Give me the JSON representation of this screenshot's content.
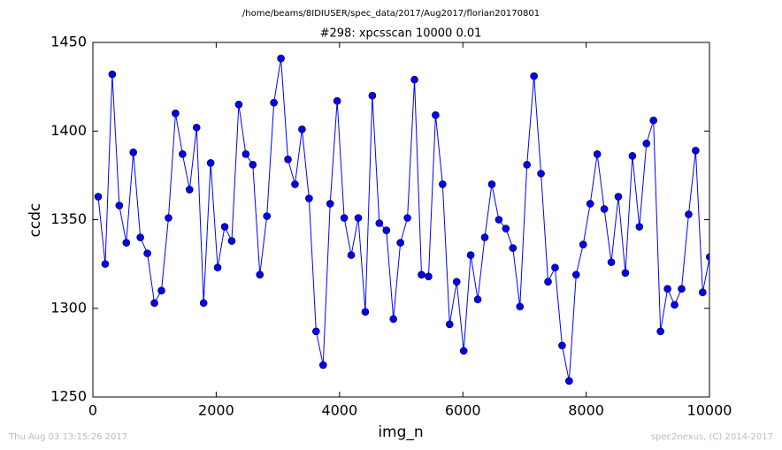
{
  "chart_data": {
    "type": "line",
    "suptitle": "/home/beams/8IDIUSER/spec_data/2017/Aug2017/florian20170801",
    "title": "#298: xpcsscan 10000 0.01",
    "xlabel": "img_n",
    "ylabel": "ccdc",
    "footer_left": "Thu Aug 03 13:15:26 2017",
    "footer_right": "spec2nexus, (C) 2014-2017",
    "color": "#0000ff",
    "x": [
      86,
      200,
      314,
      428,
      542,
      656,
      770,
      884,
      998,
      1112,
      1226,
      1340,
      1454,
      1568,
      1682,
      1796,
      1910,
      2024,
      2138,
      2252,
      2366,
      2480,
      2594,
      2708,
      2822,
      2936,
      3050,
      3164,
      3278,
      3392,
      3506,
      3620,
      3734,
      3848,
      3962,
      4076,
      4190,
      4304,
      4418,
      4532,
      4646,
      4760,
      4874,
      4988,
      5102,
      5216,
      5330,
      5444,
      5558,
      5672,
      5786,
      5900,
      6014,
      6128,
      6242,
      6356,
      6470,
      6584,
      6698,
      6812,
      6926,
      7040,
      7154,
      7268,
      7382,
      7496,
      7610,
      7724,
      7838,
      7952,
      8066,
      8180,
      8294,
      8408,
      8522,
      8636,
      8750,
      8864,
      8978,
      9092,
      9206,
      9320,
      9434,
      9548,
      9662,
      9776,
      9890,
      10004
    ],
    "values": [
      1363,
      1325,
      1432,
      1358,
      1337,
      1388,
      1340,
      1331,
      1303,
      1310,
      1351,
      1410,
      1387,
      1367,
      1402,
      1303,
      1382,
      1323,
      1346,
      1338,
      1415,
      1387,
      1381,
      1319,
      1352,
      1416,
      1441,
      1384,
      1370,
      1401,
      1362,
      1287,
      1268,
      1359,
      1417,
      1351,
      1330,
      1351,
      1298,
      1420,
      1348,
      1344,
      1294,
      1337,
      1351,
      1429,
      1319,
      1318,
      1409,
      1370,
      1291,
      1315,
      1276,
      1330,
      1305,
      1340,
      1370,
      1350,
      1345,
      1334,
      1301,
      1381,
      1431,
      1376,
      1315,
      1323,
      1279,
      1259,
      1319,
      1336,
      1359,
      1387,
      1356,
      1326,
      1363,
      1320,
      1386,
      1346,
      1393,
      1406,
      1287,
      1311,
      1302,
      1311,
      1353,
      1389,
      1309,
      1329
    ],
    "xlim": [
      0,
      10000
    ],
    "xticks": [
      0,
      2000,
      4000,
      6000,
      8000,
      10000
    ],
    "ylim": [
      1250,
      1450
    ],
    "yticks": [
      1250,
      1300,
      1350,
      1400,
      1450
    ]
  }
}
